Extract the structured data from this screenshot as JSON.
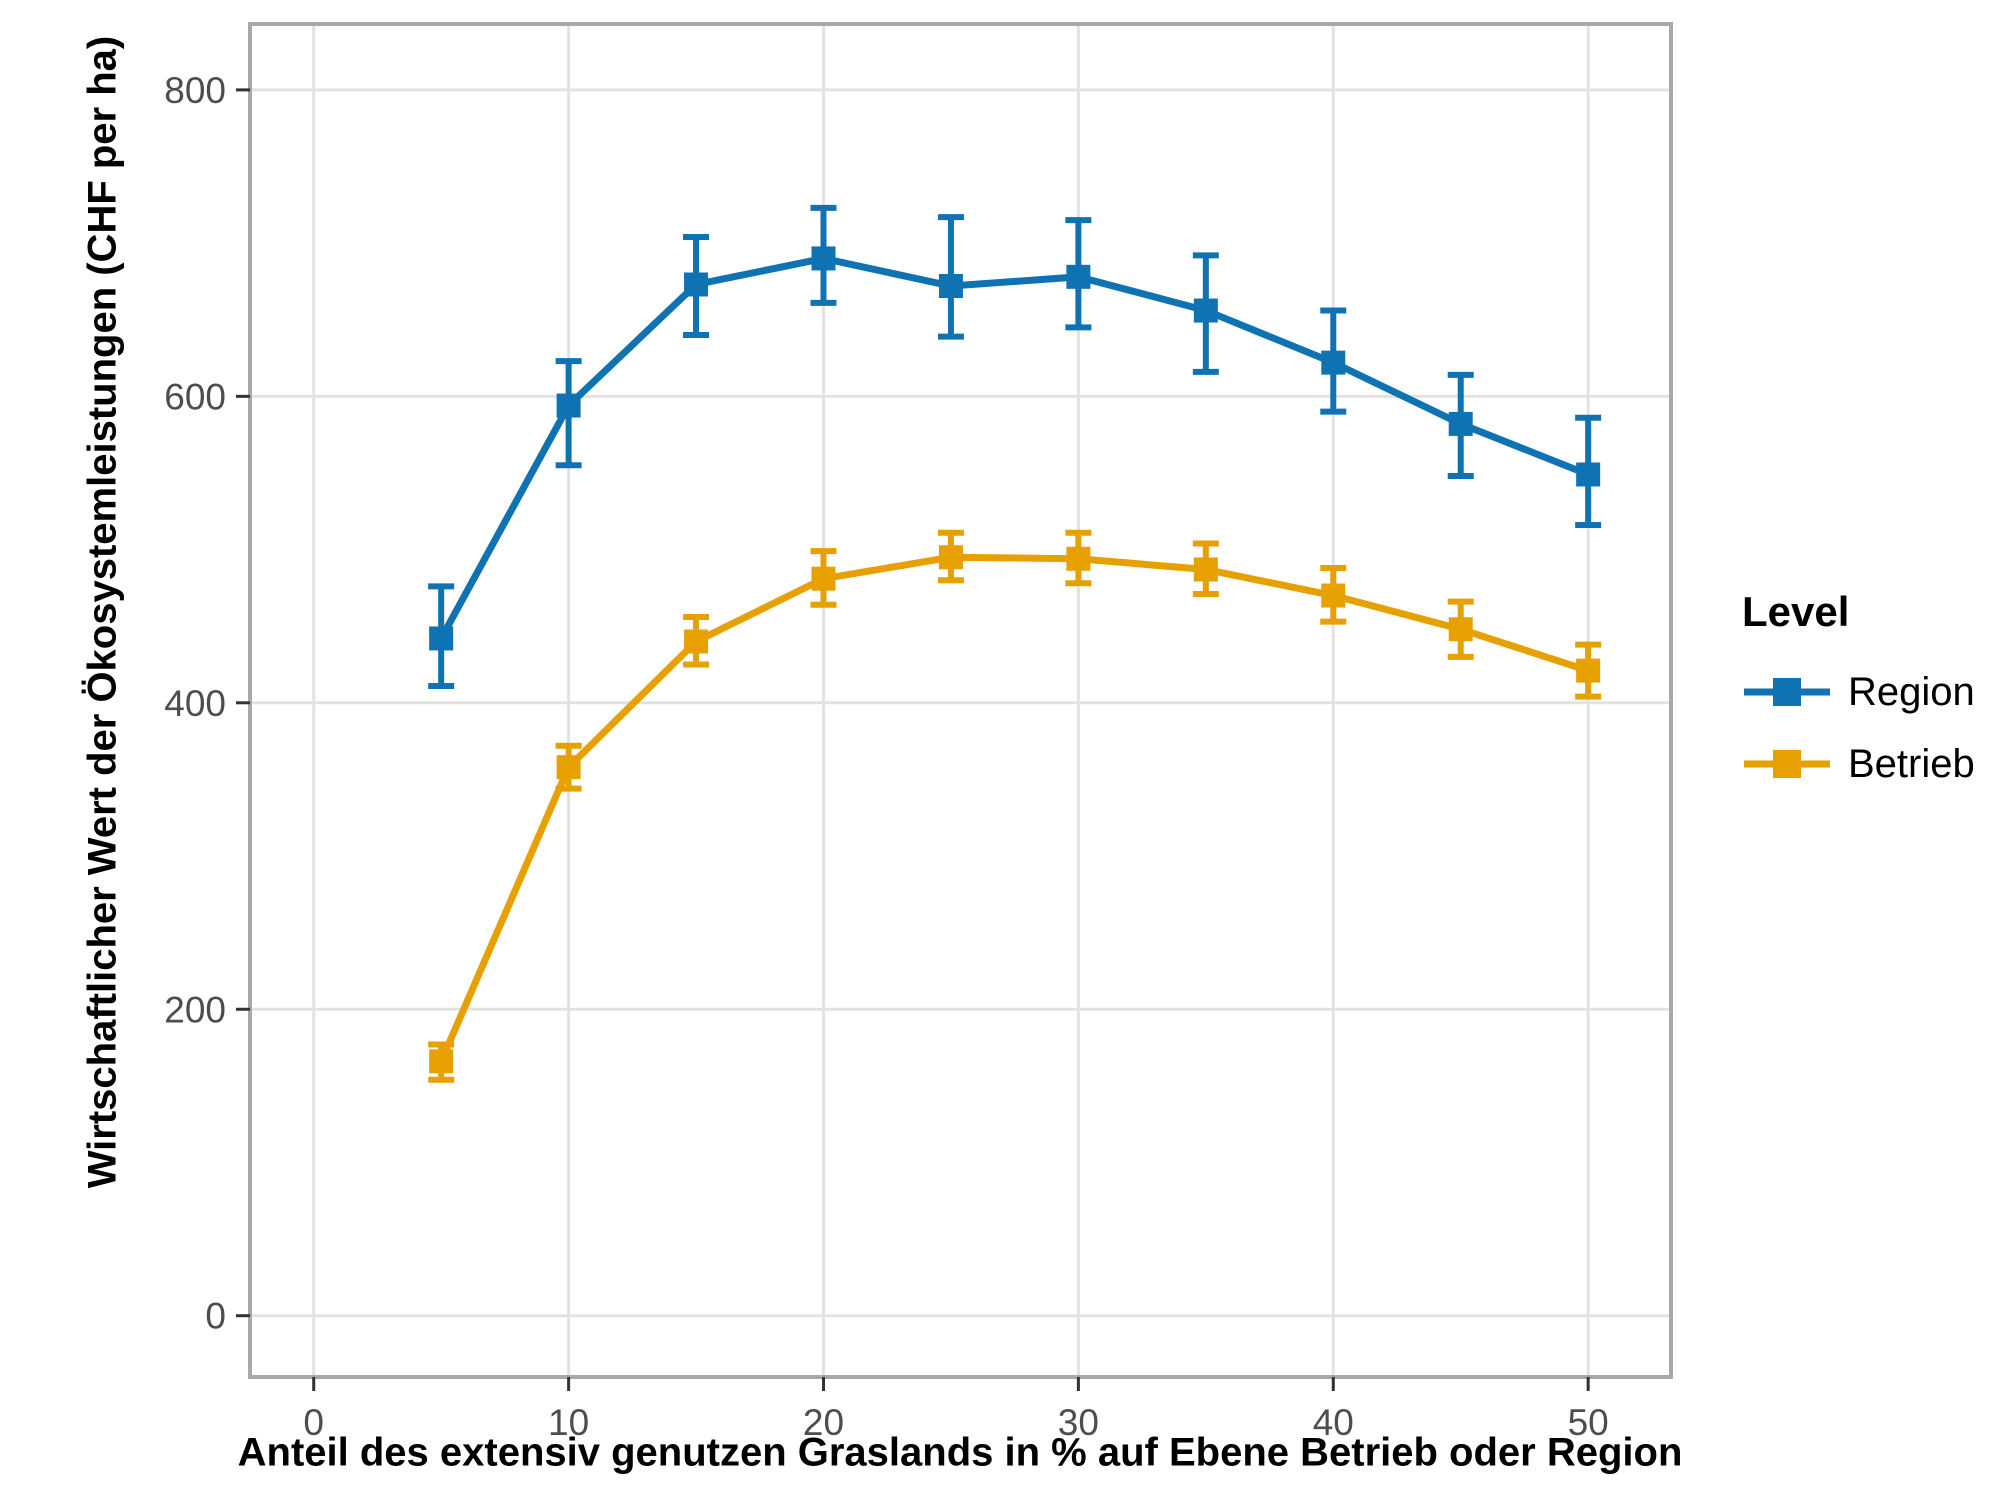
{
  "chart_data": {
    "type": "line",
    "title": "",
    "xlabel": "Anteil des extensiv genutzen Graslands in % auf Ebene Betrieb oder Region",
    "ylabel": "Wirtschaftlicher Wert der Ökosystemleistungen (CHF per ha)",
    "x_ticks": [
      0,
      10,
      20,
      30,
      40,
      50
    ],
    "y_ticks": [
      0,
      200,
      400,
      600,
      800
    ],
    "xlim": [
      -2.5,
      53.25
    ],
    "ylim": [
      -40,
      843
    ],
    "grid": true,
    "error_bars": true,
    "marker": "square",
    "legend": {
      "title": "Level",
      "position": "right"
    },
    "style": {
      "background": "#ffffff",
      "panel_background": "#ffffff",
      "grid_color": "#e2e2e2",
      "panel_border_color": "#a8a8a8",
      "tick_mark_color": "#333333",
      "tick_label_color": "#4d4d4d"
    },
    "series": [
      {
        "name": "Region",
        "color": "#0f72b2",
        "points": [
          {
            "x": 5,
            "y": 442,
            "lo": 411,
            "hi": 476
          },
          {
            "x": 10,
            "y": 594,
            "lo": 555,
            "hi": 623
          },
          {
            "x": 15,
            "y": 673,
            "lo": 640,
            "hi": 704
          },
          {
            "x": 20,
            "y": 690,
            "lo": 661,
            "hi": 723
          },
          {
            "x": 25,
            "y": 672,
            "lo": 639,
            "hi": 717
          },
          {
            "x": 30,
            "y": 678,
            "lo": 645,
            "hi": 715
          },
          {
            "x": 35,
            "y": 656,
            "lo": 616,
            "hi": 692
          },
          {
            "x": 40,
            "y": 622,
            "lo": 590,
            "hi": 656
          },
          {
            "x": 45,
            "y": 582,
            "lo": 548,
            "hi": 614
          },
          {
            "x": 50,
            "y": 549,
            "lo": 516,
            "hi": 586
          }
        ]
      },
      {
        "name": "Betrieb",
        "color": "#e6a000",
        "points": [
          {
            "x": 5,
            "y": 166,
            "lo": 154,
            "hi": 177
          },
          {
            "x": 10,
            "y": 358,
            "lo": 344,
            "hi": 372
          },
          {
            "x": 15,
            "y": 440,
            "lo": 425,
            "hi": 456
          },
          {
            "x": 20,
            "y": 481,
            "lo": 464,
            "hi": 499
          },
          {
            "x": 25,
            "y": 495,
            "lo": 480,
            "hi": 511
          },
          {
            "x": 30,
            "y": 494,
            "lo": 478,
            "hi": 511
          },
          {
            "x": 35,
            "y": 487,
            "lo": 471,
            "hi": 504
          },
          {
            "x": 40,
            "y": 470,
            "lo": 453,
            "hi": 488
          },
          {
            "x": 45,
            "y": 448,
            "lo": 430,
            "hi": 466
          },
          {
            "x": 50,
            "y": 421,
            "lo": 404,
            "hi": 438
          }
        ]
      }
    ]
  }
}
